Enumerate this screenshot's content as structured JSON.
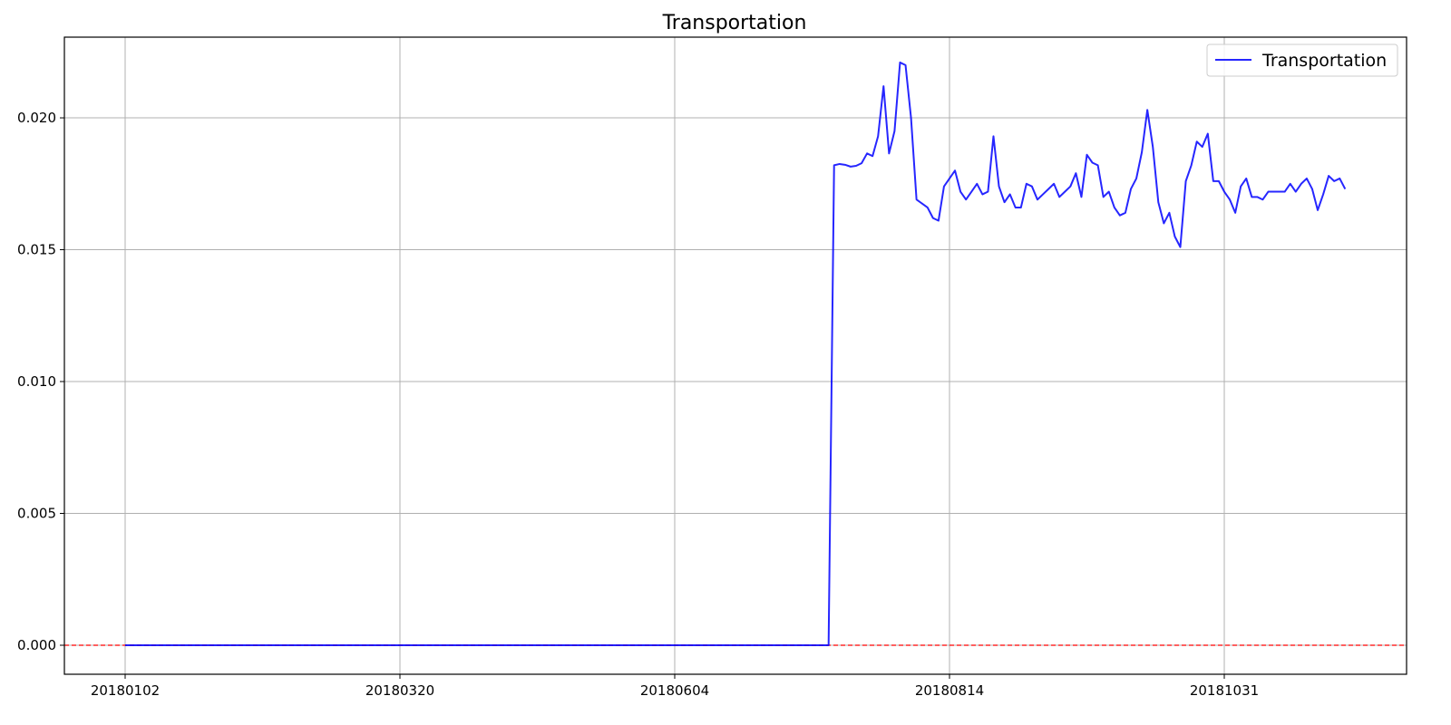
{
  "chart_data": {
    "type": "line",
    "title": "Transportation",
    "xlabel": "",
    "ylabel": "",
    "x_ticks": [
      "20180102",
      "20180320",
      "20180604",
      "20180814",
      "20181031"
    ],
    "y_ticks": [
      "0.000",
      "0.005",
      "0.010",
      "0.015",
      "0.020"
    ],
    "ylim": [
      -0.0011,
      0.02306
    ],
    "grid": true,
    "legend": {
      "position": "top-right",
      "entries": [
        "Transportation"
      ]
    },
    "reference_line": {
      "y": 0.0,
      "color": "#ff0000",
      "style": "dashed"
    },
    "series": [
      {
        "name": "Transportation",
        "color": "#0000ff",
        "x_start_label": "20180102",
        "trading_days_between_ticks": [
          50,
          50,
          50,
          50
        ],
        "zero_until_index": 128,
        "values": [
          0.0182,
          0.01825,
          0.01822,
          0.01815,
          0.01818,
          0.01828,
          0.01865,
          0.01855,
          0.0193,
          0.0212,
          0.01865,
          0.0195,
          0.0221,
          0.022,
          0.02,
          0.0169,
          0.01675,
          0.0166,
          0.0162,
          0.0161,
          0.0174,
          0.0177,
          0.018,
          0.0172,
          0.0169,
          0.0172,
          0.0175,
          0.0171,
          0.0172,
          0.0193,
          0.0174,
          0.0168,
          0.0171,
          0.0166,
          0.0166,
          0.0175,
          0.0174,
          0.0169,
          0.0171,
          0.0173,
          0.0175,
          0.017,
          0.0172,
          0.0174,
          0.0179,
          0.017,
          0.0186,
          0.0183,
          0.0182,
          0.017,
          0.0172,
          0.0166,
          0.0163,
          0.0164,
          0.0173,
          0.0177,
          0.0187,
          0.0203,
          0.0189,
          0.0168,
          0.016,
          0.0164,
          0.0155,
          0.0151,
          0.0176,
          0.0182,
          0.0191,
          0.0189,
          0.0194,
          0.0176,
          0.0176,
          0.0172,
          0.0169,
          0.0164,
          0.0174,
          0.0177,
          0.017,
          0.017,
          0.0169,
          0.0172,
          0.0172,
          0.0172,
          0.0172,
          0.0175,
          0.0172,
          0.0175,
          0.0177,
          0.0173,
          0.0165,
          0.0171,
          0.0178,
          0.0176,
          0.0177,
          0.0173
        ]
      }
    ]
  }
}
